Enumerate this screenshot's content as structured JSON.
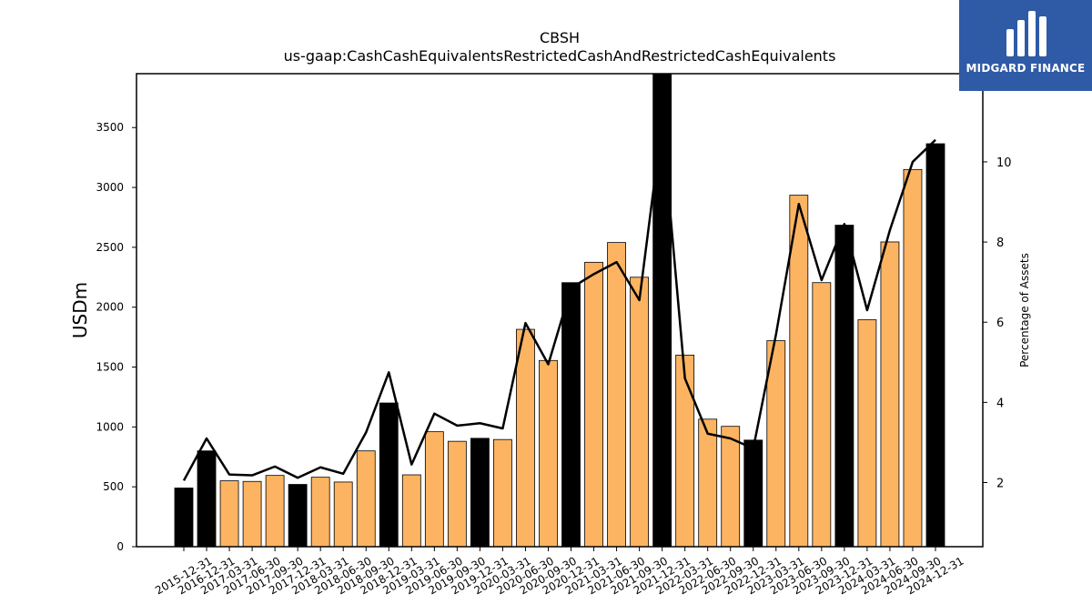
{
  "chart_data": {
    "type": "bar",
    "title": "CBSH",
    "subtitle": "us-gaap:CashCashEquivalentsRestrictedCashAndRestrictedCashEquivalents",
    "ylabel": "USDm",
    "y2label": "Percentage of Assets",
    "ylim": [
      0,
      3950
    ],
    "y2lim": [
      0.4,
      12.2
    ],
    "yticks": [
      0,
      500,
      1000,
      1500,
      2000,
      2500,
      3000,
      3500
    ],
    "y2ticks": [
      2,
      4,
      6,
      8,
      10
    ],
    "categories": [
      "2015-12-31",
      "2016-12-31",
      "2017-03-31",
      "2017-06-30",
      "2017-09-30",
      "2017-12-31",
      "2018-03-31",
      "2018-06-30",
      "2018-09-30",
      "2018-12-31",
      "2019-03-31",
      "2019-06-30",
      "2019-09-30",
      "2019-12-31",
      "2020-03-31",
      "2020-06-30",
      "2020-09-30",
      "2020-12-31",
      "2021-03-31",
      "2021-06-30",
      "2021-09-30",
      "2021-12-31",
      "2022-03-31",
      "2022-06-30",
      "2022-09-30",
      "2022-12-31",
      "2023-03-31",
      "2023-06-30",
      "2023-09-30",
      "2023-12-31",
      "2024-03-31",
      "2024-06-30",
      "2024-09-30",
      "2024-12-31"
    ],
    "series": [
      {
        "type": "bar",
        "values": [
          490,
          800,
          550,
          545,
          595,
          520,
          580,
          540,
          800,
          1200,
          600,
          960,
          880,
          905,
          895,
          1815,
          1555,
          2205,
          2375,
          2540,
          2250,
          3950,
          1600,
          1065,
          1005,
          890,
          1720,
          2935,
          2205,
          2685,
          1895,
          2545,
          3150,
          3365
        ],
        "highlight": [
          true,
          true,
          false,
          false,
          false,
          true,
          false,
          false,
          false,
          true,
          false,
          false,
          false,
          true,
          false,
          false,
          false,
          true,
          false,
          false,
          false,
          true,
          false,
          false,
          false,
          true,
          false,
          false,
          false,
          true,
          false,
          false,
          false,
          true
        ]
      },
      {
        "type": "line",
        "axis": "right",
        "values": [
          2.05,
          3.1,
          2.2,
          2.18,
          2.4,
          2.12,
          2.38,
          2.22,
          3.25,
          4.75,
          2.45,
          3.72,
          3.42,
          3.48,
          3.35,
          5.98,
          4.95,
          6.85,
          7.2,
          7.5,
          6.55,
          11.0,
          4.6,
          3.22,
          3.1,
          2.85,
          5.7,
          8.95,
          7.05,
          8.45,
          6.3,
          8.3,
          10.0,
          10.55
        ]
      }
    ],
    "colors": {
      "highlight": "#000000",
      "normal": "#fdb462",
      "line": "#000000"
    },
    "grid": false
  },
  "logo": {
    "text": "MIDGARD FINANCE",
    "icon": "midgard-logo-icon"
  }
}
